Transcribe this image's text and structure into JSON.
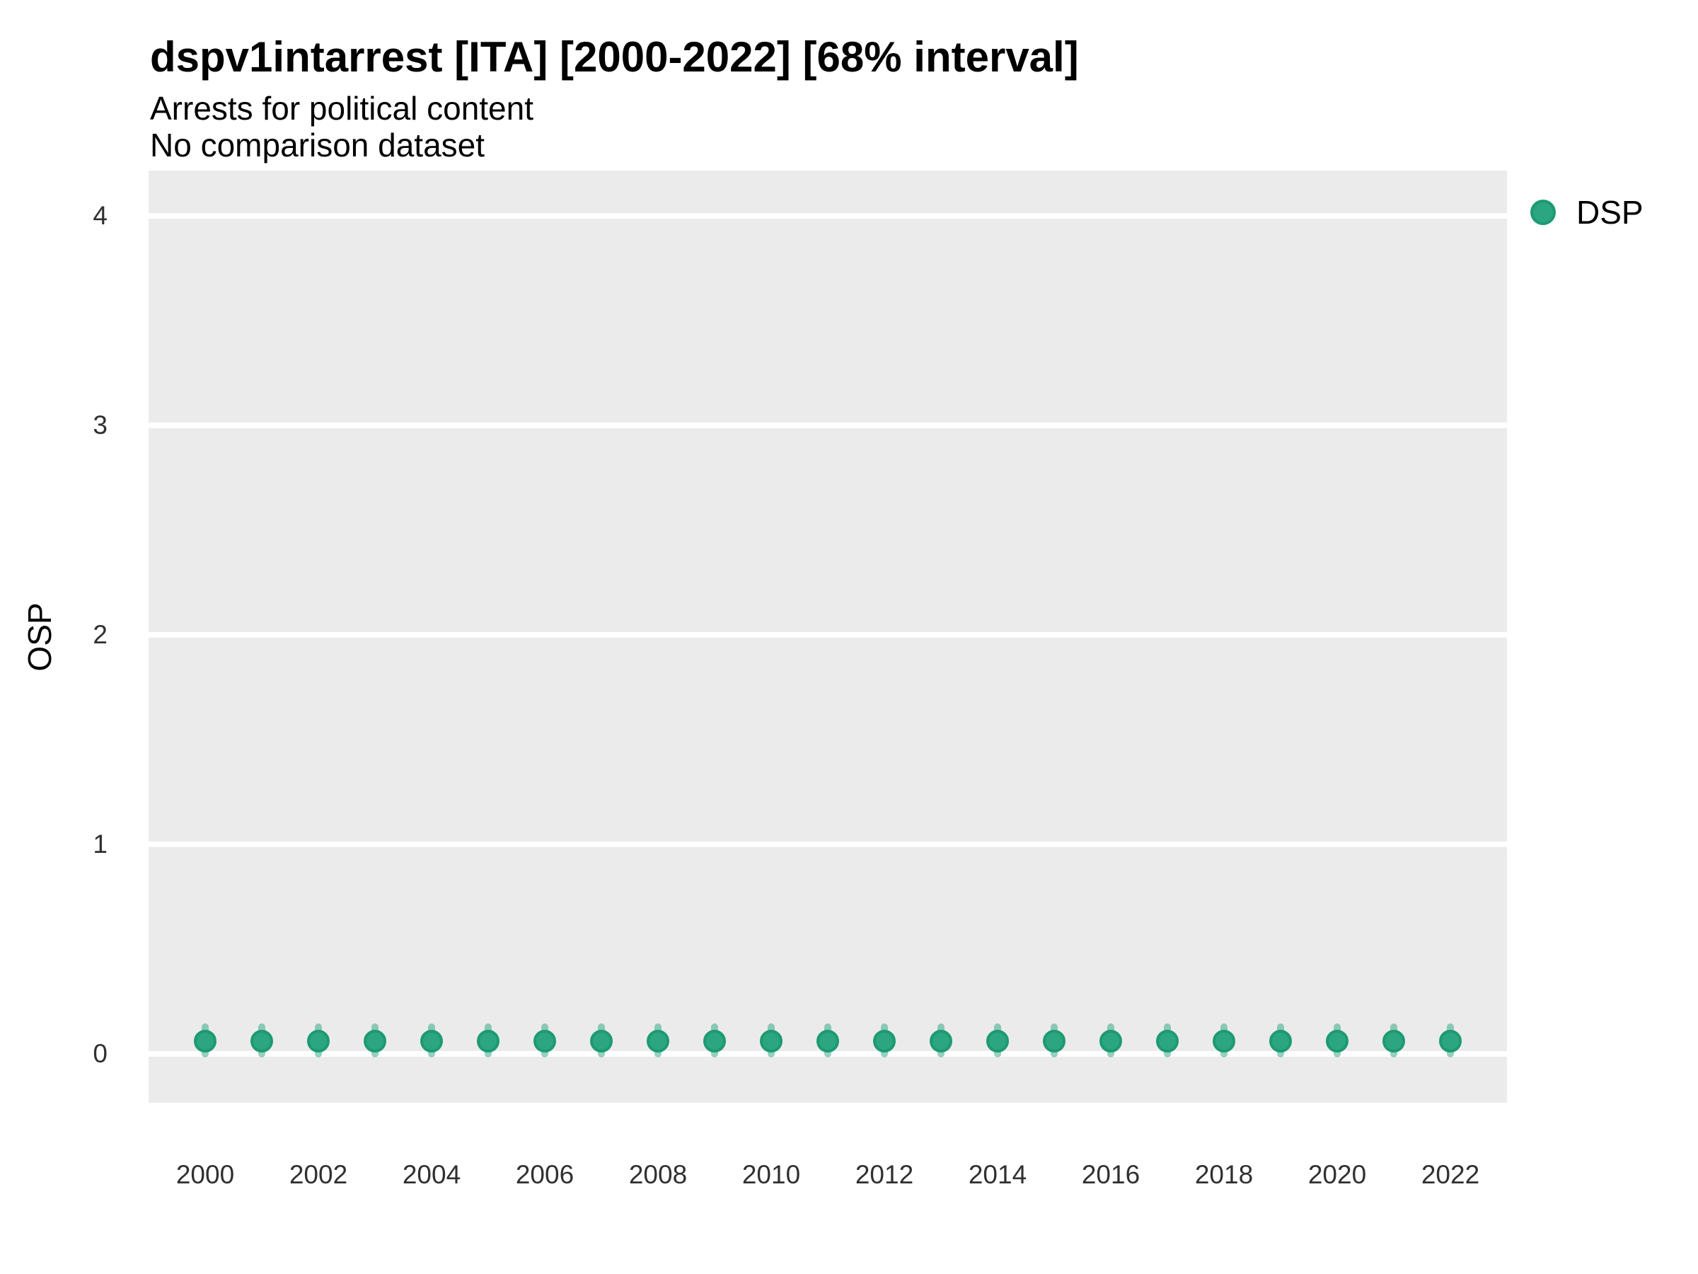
{
  "chart_data": {
    "type": "scatter",
    "title": "dspv1intarrest [ITA] [2000-2022] [68% interval]",
    "subtitle": "Arrests for political content",
    "note": "No comparison dataset",
    "xlabel": "",
    "ylabel": "OSP",
    "interval_label": "68% interval",
    "country": "ITA",
    "xlim": [
      1999,
      2023
    ],
    "ylim": [
      -0.23,
      4.22
    ],
    "yticks": [
      0,
      1,
      2,
      3,
      4
    ],
    "xticks": [
      2000,
      2002,
      2004,
      2006,
      2008,
      2010,
      2012,
      2014,
      2016,
      2018,
      2020,
      2022
    ],
    "grid": "horizontal-major-only",
    "legend_position": "right",
    "panel_bg": "#EBEBEB",
    "grid_color": "#FFFFFF",
    "tick_label_color": "#303030",
    "series": [
      {
        "name": "DSP",
        "color": "#2CA681",
        "stroke": "#1D9A72",
        "interval_color": "rgba(43,164,126,0.5)",
        "x": [
          2000,
          2001,
          2002,
          2003,
          2004,
          2005,
          2006,
          2007,
          2008,
          2009,
          2010,
          2011,
          2012,
          2013,
          2014,
          2015,
          2016,
          2017,
          2018,
          2019,
          2020,
          2021,
          2022
        ],
        "y": [
          0.06,
          0.06,
          0.06,
          0.06,
          0.06,
          0.06,
          0.06,
          0.06,
          0.06,
          0.06,
          0.06,
          0.06,
          0.06,
          0.06,
          0.06,
          0.06,
          0.06,
          0.06,
          0.06,
          0.06,
          0.06,
          0.06,
          0.06
        ],
        "y_low": [
          0,
          0,
          0,
          0,
          0,
          0,
          0,
          0,
          0,
          0,
          0,
          0,
          0,
          0,
          0,
          0,
          0,
          0,
          0,
          0,
          0,
          0,
          0
        ],
        "y_high": [
          0.13,
          0.13,
          0.13,
          0.13,
          0.13,
          0.13,
          0.13,
          0.13,
          0.13,
          0.13,
          0.13,
          0.13,
          0.13,
          0.13,
          0.13,
          0.13,
          0.13,
          0.13,
          0.13,
          0.13,
          0.13,
          0.13,
          0.13
        ]
      }
    ]
  },
  "legend": {
    "items": [
      {
        "label": "DSP",
        "color": "#2CA681"
      }
    ]
  }
}
